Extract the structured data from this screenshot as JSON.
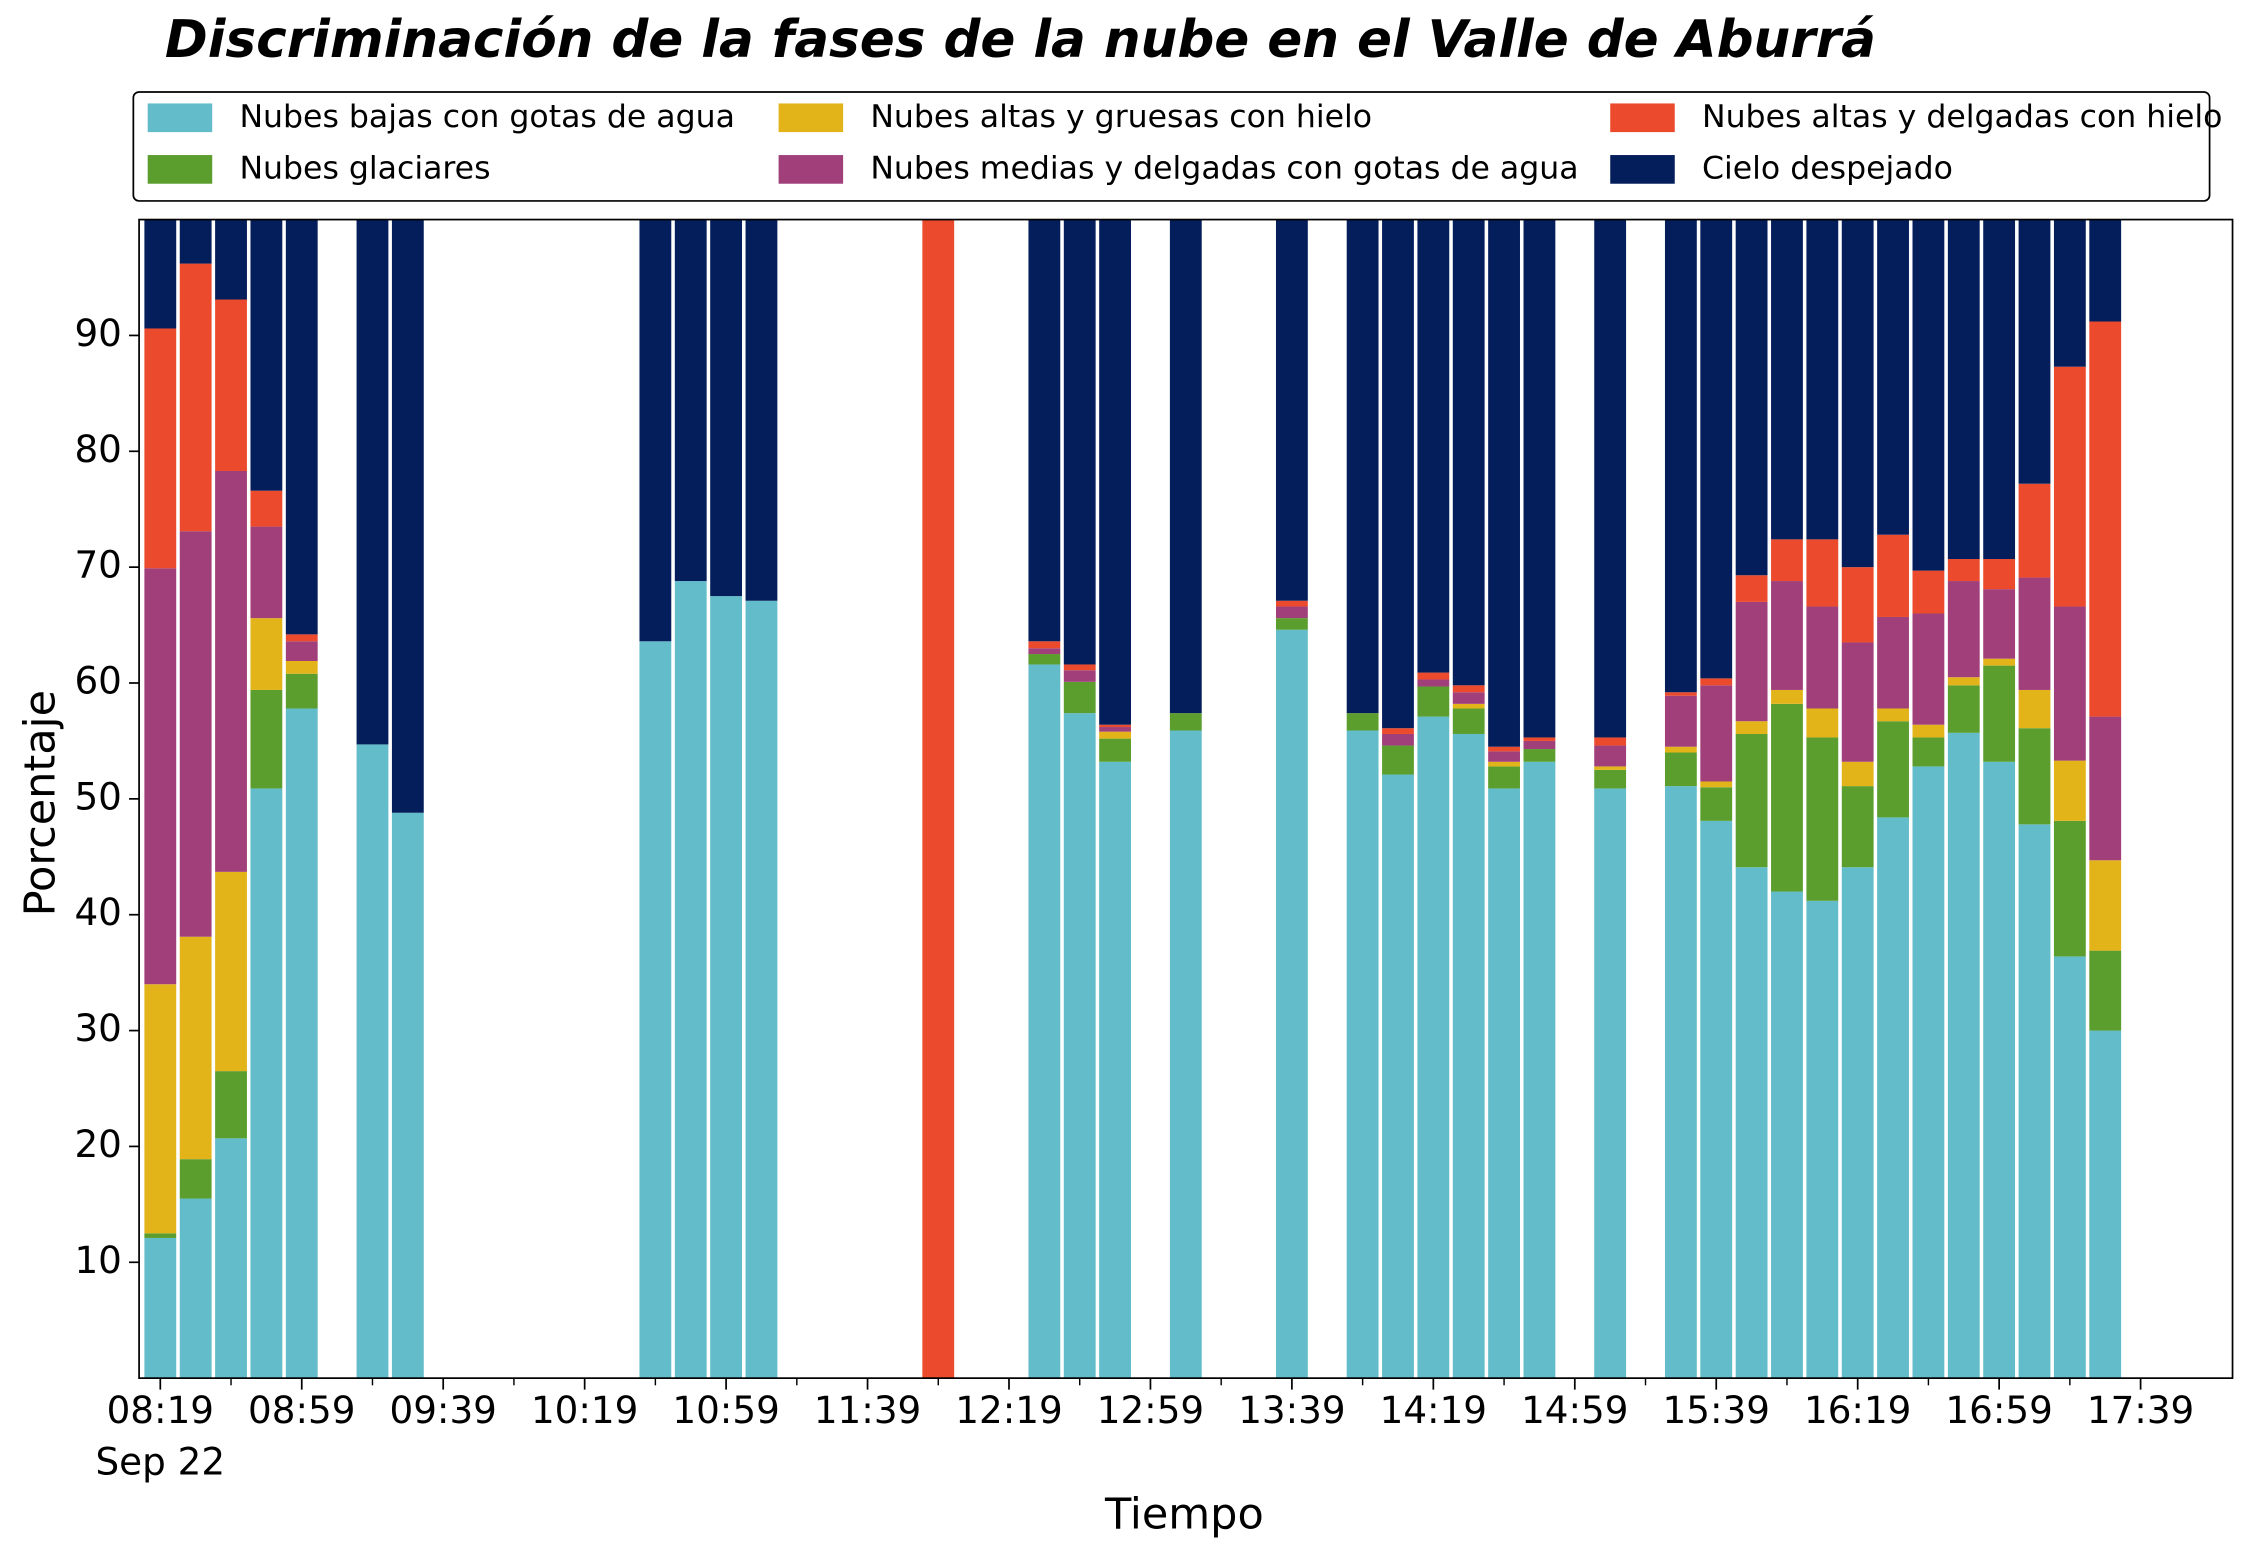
{
  "chart_data": {
    "type": "stacked_bar",
    "title": "Discriminación de la fases de la nube en el Valle de Aburrá",
    "x_label": "Tiempo",
    "y_label": "Porcentaje",
    "x": [
      "08:19",
      "08:29",
      "08:39",
      "08:49",
      "08:59",
      "09:19",
      "09:29",
      "10:39",
      "10:49",
      "10:59",
      "11:09",
      "11:59",
      "12:29",
      "12:39",
      "12:49",
      "13:09",
      "13:39",
      "13:59",
      "14:09",
      "14:19",
      "14:29",
      "14:39",
      "14:49",
      "15:09",
      "15:29",
      "15:39",
      "15:49",
      "15:59",
      "16:09",
      "16:19",
      "16:29",
      "16:39",
      "16:49",
      "16:59",
      "17:09",
      "17:19",
      "17:29"
    ],
    "xlim": [
      "08:13",
      "18:05"
    ],
    "xticks": [
      "08:19",
      "08:59",
      "09:39",
      "10:19",
      "10:59",
      "11:39",
      "12:19",
      "12:59",
      "13:39",
      "14:19",
      "14:59",
      "15:39",
      "16:19",
      "16:59",
      "17:39"
    ],
    "xtick_date": "Sep 22",
    "ylim": [
      0,
      100
    ],
    "yticks": [
      10,
      20,
      30,
      40,
      50,
      60,
      70,
      80,
      90
    ],
    "legend": "top",
    "series": [
      {
        "name": "Nubes bajas con gotas de agua",
        "color": "#63bcc9",
        "values": [
          12.1,
          15.5,
          20.7,
          50.9,
          57.8,
          54.7,
          48.8,
          63.6,
          68.8,
          67.5,
          67.1,
          0,
          61.6,
          57.4,
          53.2,
          55.9,
          64.6,
          55.9,
          52.1,
          57.1,
          55.6,
          50.9,
          53.2,
          50.9,
          51.1,
          48.1,
          44.1,
          42.0,
          41.2,
          44.1,
          48.4,
          52.8,
          55.7,
          53.2,
          47.8,
          36.4,
          30.0
        ]
      },
      {
        "name": "Nubes glaciares",
        "color": "#5c9e2e",
        "values": [
          0.4,
          3.4,
          5.8,
          8.5,
          3.0,
          0,
          0,
          0,
          0,
          0,
          0,
          0,
          0.9,
          2.7,
          2.0,
          1.5,
          1.0,
          1.5,
          2.5,
          2.6,
          2.2,
          1.9,
          1.1,
          1.6,
          2.9,
          2.9,
          11.5,
          16.2,
          14.1,
          7.0,
          8.3,
          2.5,
          4.1,
          8.3,
          8.3,
          11.7,
          6.9
        ]
      },
      {
        "name": "Nubes altas y gruesas con hielo",
        "color": "#e2b41a",
        "values": [
          21.5,
          19.2,
          17.2,
          6.2,
          1.1,
          0,
          0,
          0,
          0,
          0,
          0,
          0,
          0,
          0,
          0.6,
          0,
          0,
          0,
          0,
          0,
          0.4,
          0.4,
          0,
          0.3,
          0.5,
          0.5,
          1.1,
          1.2,
          2.5,
          2.1,
          1.1,
          1.1,
          0.7,
          0.6,
          3.3,
          5.2,
          7.8
        ]
      },
      {
        "name": "Nubes medias y delgadas con gotas de agua",
        "color": "#a03f7a",
        "values": [
          35.9,
          35.0,
          34.6,
          7.9,
          1.7,
          0,
          0,
          0,
          0,
          0,
          0,
          0,
          0.5,
          1.0,
          0.4,
          0,
          1.0,
          0,
          1.0,
          0.6,
          1.0,
          0.9,
          0.7,
          1.8,
          4.4,
          8.3,
          10.3,
          9.4,
          8.8,
          10.3,
          7.9,
          9.6,
          8.3,
          6.0,
          9.7,
          13.3,
          12.4
        ]
      },
      {
        "name": "Nubes altas y delgadas con hielo",
        "color": "#ec4a2c",
        "values": [
          20.7,
          23.1,
          14.8,
          3.1,
          0.6,
          0,
          0,
          0,
          0,
          0,
          0,
          100,
          0.6,
          0.5,
          0.2,
          0,
          0.5,
          0,
          0.5,
          0.6,
          0.6,
          0.4,
          0.3,
          0.7,
          0.3,
          0.6,
          2.3,
          3.6,
          5.8,
          6.5,
          7.1,
          3.7,
          1.9,
          2.6,
          8.1,
          20.7,
          34.1
        ]
      },
      {
        "name": "Cielo despejado",
        "color": "#041e5c",
        "values": [
          9.4,
          3.8,
          6.9,
          23.4,
          35.8,
          45.3,
          51.2,
          36.4,
          31.2,
          32.5,
          32.9,
          0,
          36.4,
          38.4,
          43.6,
          42.6,
          32.9,
          42.6,
          43.9,
          39.1,
          40.2,
          45.5,
          44.7,
          44.7,
          40.8,
          39.6,
          30.7,
          27.6,
          27.6,
          30.0,
          27.2,
          30.3,
          29.3,
          29.3,
          22.8,
          12.7,
          8.8
        ]
      }
    ]
  }
}
